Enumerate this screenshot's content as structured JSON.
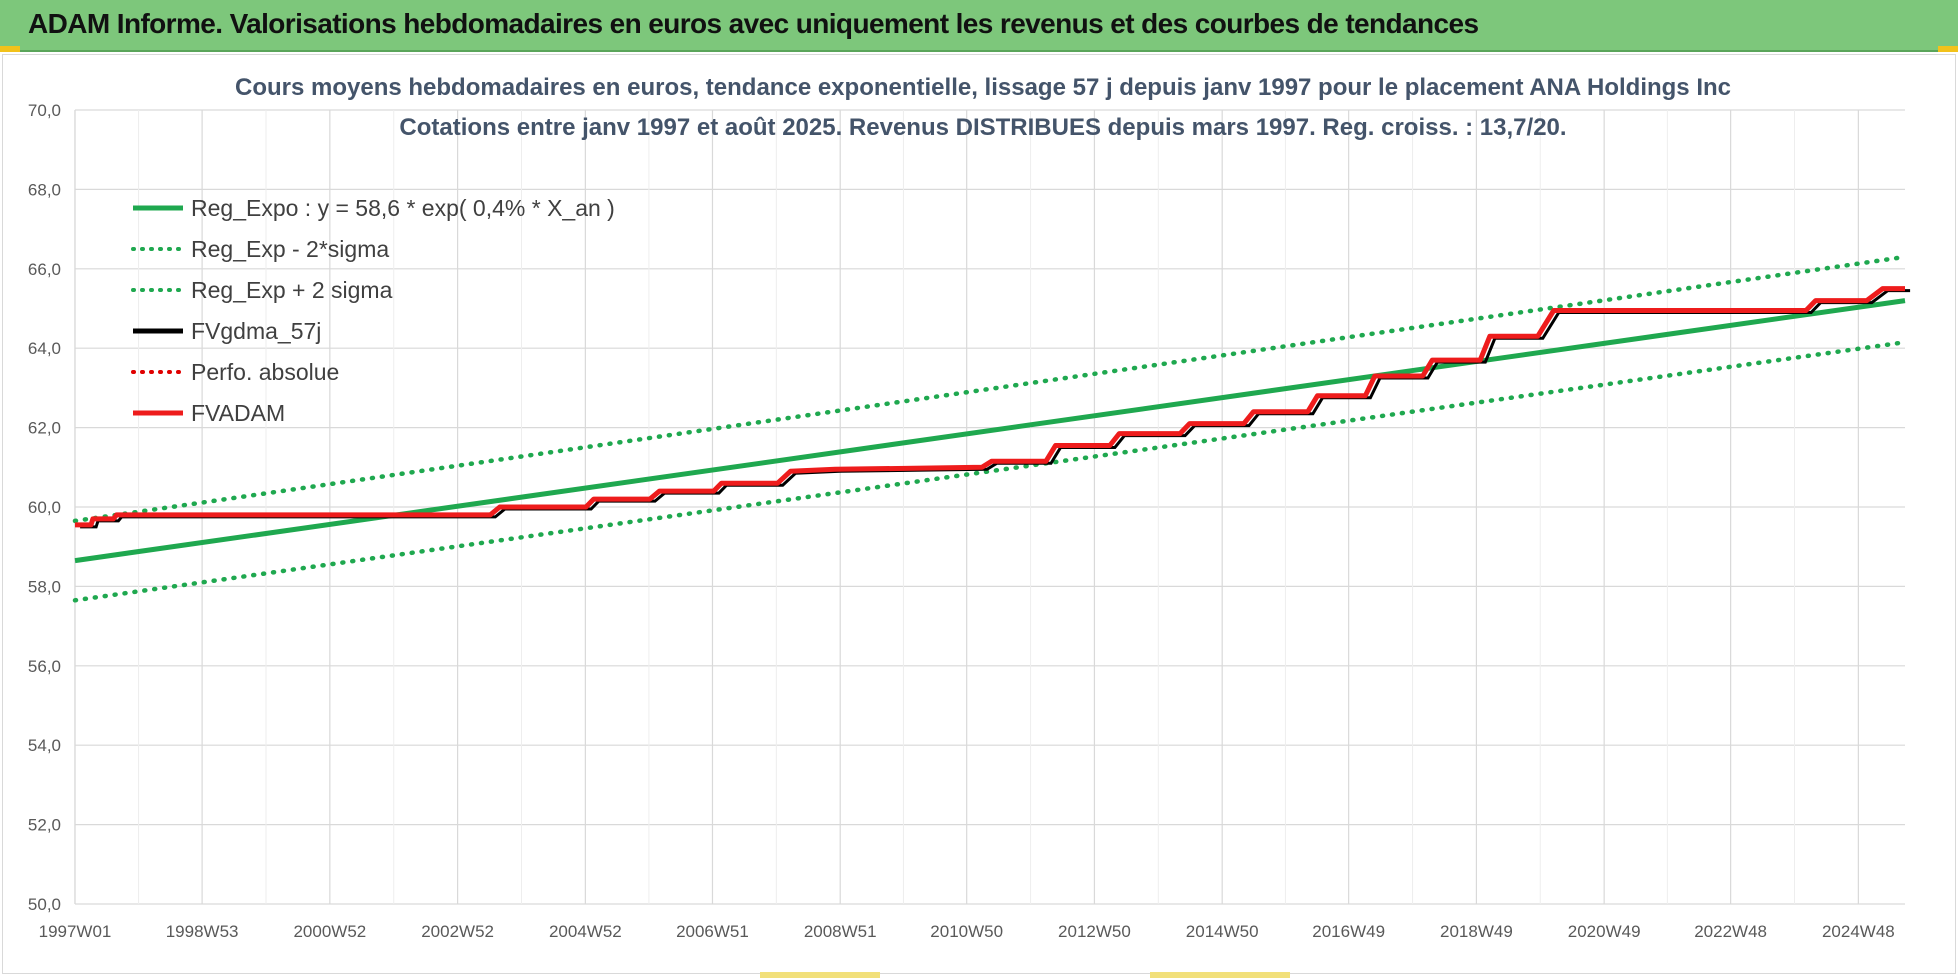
{
  "banner": {
    "title": "ADAM Informe. Valorisations hebdomadaires en euros avec uniquement les revenus et des courbes de tendances"
  },
  "colors": {
    "banner_bg": "#7dc77b",
    "reg_green": "#1fa84f",
    "fv_black": "#000000",
    "fvadam_red": "#ee1c1c",
    "perfo_red": "#e00000",
    "title_text": "#44546a",
    "grid": "#d9d9d9"
  },
  "chart_data": {
    "type": "line",
    "title_line1": "Cours moyens hebdomadaires en euros, tendance exponentielle, lissage 57 j depuis janv 1997  pour le placement ANA Holdings Inc",
    "title_line2": "Cotations entre janv 1997 et août 2025.  Revenus DISTRIBUES depuis mars 1997. Reg. croiss. : 13,7/20.",
    "ylim": [
      50.0,
      70.0
    ],
    "y_ticks": [
      "50,0",
      "52,0",
      "54,0",
      "56,0",
      "58,0",
      "60,0",
      "62,0",
      "64,0",
      "66,0",
      "68,0",
      "70,0"
    ],
    "x_range": [
      1997.0,
      2025.65
    ],
    "x_ticks": [
      {
        "x": 1997.0,
        "label": "1997W01"
      },
      {
        "x": 1998.99,
        "label": "1998W53"
      },
      {
        "x": 2000.99,
        "label": "2000W52"
      },
      {
        "x": 2002.99,
        "label": "2002W52"
      },
      {
        "x": 2004.99,
        "label": "2004W52"
      },
      {
        "x": 2006.98,
        "label": "2006W51"
      },
      {
        "x": 2008.98,
        "label": "2008W51"
      },
      {
        "x": 2010.96,
        "label": "2010W50"
      },
      {
        "x": 2012.96,
        "label": "2012W50"
      },
      {
        "x": 2014.96,
        "label": "2014W50"
      },
      {
        "x": 2016.94,
        "label": "2016W49"
      },
      {
        "x": 2018.94,
        "label": "2018W49"
      },
      {
        "x": 2020.94,
        "label": "2020W49"
      },
      {
        "x": 2022.92,
        "label": "2022W48"
      },
      {
        "x": 2024.92,
        "label": "2024W48"
      }
    ],
    "grid": true,
    "legend_position": "top-left",
    "legend": [
      {
        "key": "reg_expo",
        "label": "Reg_Expo : y = 58,6 * exp( 0,4% *  X_an )",
        "style": "solid",
        "color": "#1fa84f"
      },
      {
        "key": "reg_minus",
        "label": "Reg_Exp - 2*sigma",
        "style": "dotted",
        "color": "#1fa84f"
      },
      {
        "key": "reg_plus",
        "label": "Reg_Exp + 2 sigma",
        "style": "dotted",
        "color": "#1fa84f"
      },
      {
        "key": "fvgdma",
        "label": "FVgdma_57j",
        "style": "solid",
        "color": "#000000"
      },
      {
        "key": "perfo",
        "label": "Perfo. absolue",
        "style": "dotted",
        "color": "#e00000"
      },
      {
        "key": "fvadam",
        "label": "FVADAM",
        "style": "solid",
        "color": "#ee1c1c"
      }
    ],
    "series": [
      {
        "key": "reg_expo",
        "x": [
          1997.0,
          2025.65
        ],
        "y": [
          58.65,
          65.2
        ]
      },
      {
        "key": "reg_minus",
        "x": [
          1997.0,
          2025.65
        ],
        "y": [
          57.65,
          64.15
        ]
      },
      {
        "key": "reg_plus",
        "x": [
          1997.0,
          2025.65
        ],
        "y": [
          59.65,
          66.3
        ]
      },
      {
        "key": "fvadam",
        "x": [
          1997.0,
          1997.25,
          1997.28,
          1997.6,
          1997.65,
          2003.5,
          2003.65,
          2005.0,
          2005.12,
          2006.0,
          2006.15,
          2007.0,
          2007.12,
          2008.0,
          2008.2,
          2008.9,
          2011.2,
          2011.35,
          2012.2,
          2012.35,
          2013.2,
          2013.35,
          2014.3,
          2014.45,
          2015.3,
          2015.45,
          2016.3,
          2016.45,
          2017.2,
          2017.35,
          2018.1,
          2018.25,
          2019.0,
          2019.15,
          2019.9,
          2020.15,
          2024.1,
          2024.25,
          2025.05,
          2025.3,
          2025.65
        ],
        "y": [
          59.55,
          59.55,
          59.7,
          59.7,
          59.8,
          59.8,
          60.0,
          60.0,
          60.2,
          60.2,
          60.4,
          60.4,
          60.6,
          60.6,
          60.9,
          60.95,
          61.0,
          61.15,
          61.15,
          61.55,
          61.55,
          61.85,
          61.85,
          62.1,
          62.1,
          62.4,
          62.4,
          62.8,
          62.8,
          63.3,
          63.3,
          63.7,
          63.7,
          64.3,
          64.3,
          64.95,
          64.95,
          65.2,
          65.2,
          65.5,
          65.5
        ]
      }
    ]
  }
}
